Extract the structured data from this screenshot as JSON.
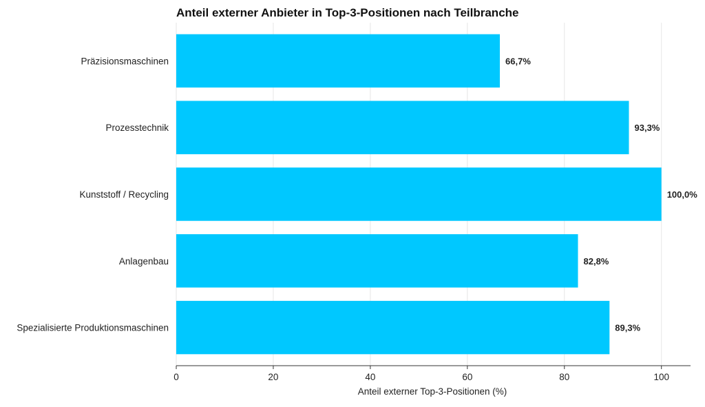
{
  "chart_data": {
    "type": "bar",
    "orientation": "horizontal",
    "title": "Anteil externer Anbieter in Top-3-Positionen nach Teilbranche",
    "xlabel": "Anteil externer Top-3-Positionen (%)",
    "ylabel": "",
    "xlim": [
      0,
      106
    ],
    "xticks": [
      0,
      20,
      40,
      60,
      80,
      100
    ],
    "grid": true,
    "legend": "none",
    "bar_color": "#00C8FF",
    "categories": [
      "Präzisionsmaschinen",
      "Prozesstechnik",
      "Kunststoff / Recycling",
      "Anlagenbau",
      "Spezialisierte Produktionsmaschinen"
    ],
    "values": [
      66.7,
      93.3,
      100.0,
      82.8,
      89.3
    ],
    "value_labels": [
      "66,7%",
      "93,3%",
      "100,0%",
      "82,8%",
      "89,3%"
    ]
  }
}
